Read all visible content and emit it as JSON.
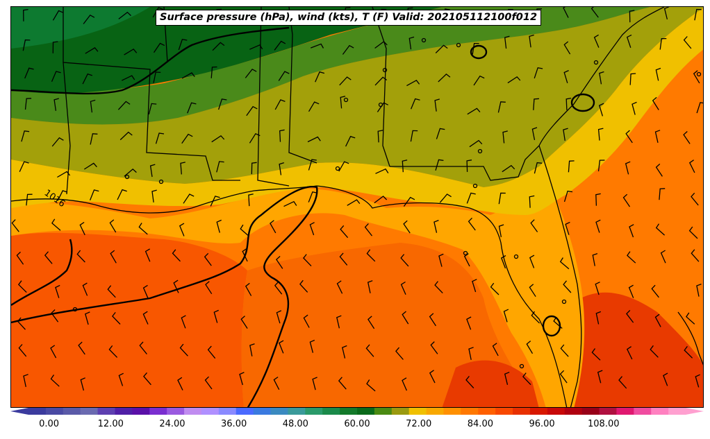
{
  "title": "Surface pressure (hPa), wind (kts), T (F) Valid: 202105112100f012",
  "isobar_label": "1016",
  "colorbar": {
    "min": -4,
    "max": 124,
    "step": 4,
    "tick_labels": [
      "0.00",
      "12.00",
      "24.00",
      "36.00",
      "48.00",
      "60.00",
      "72.00",
      "84.00",
      "96.00",
      "108.00"
    ],
    "colors": [
      "#3b3b9e",
      "#4a4aa3",
      "#5a5aa8",
      "#6a6ab0",
      "#5d3fb0",
      "#4f1fa6",
      "#5a10a8",
      "#7a2ed0",
      "#9a5ae0",
      "#c08cf0",
      "#b090ff",
      "#8a8aff",
      "#4a6aff",
      "#3a7ae0",
      "#3a8ac0",
      "#3a9a9a",
      "#2a9a6a",
      "#1a8a4a",
      "#137a2a",
      "#0a6a1a",
      "#4a8a12",
      "#9a9a10",
      "#f0c000",
      "#f8a800",
      "#ff9000",
      "#ff7800",
      "#ff6000",
      "#f84800",
      "#e83000",
      "#d81800",
      "#c80808",
      "#b00010",
      "#980018",
      "#b01040",
      "#e01870",
      "#f04ca0",
      "#ff80c0",
      "#ffa0d0"
    ]
  },
  "legend_colors": {
    "dark_green": "#086314",
    "green": "#4a8a1a",
    "olive": "#a3a00a",
    "yellow": "#f0c000",
    "orange_light": "#ffa600",
    "orange": "#ff7a00",
    "orange_red": "#f85700",
    "red": "#e83a00"
  }
}
